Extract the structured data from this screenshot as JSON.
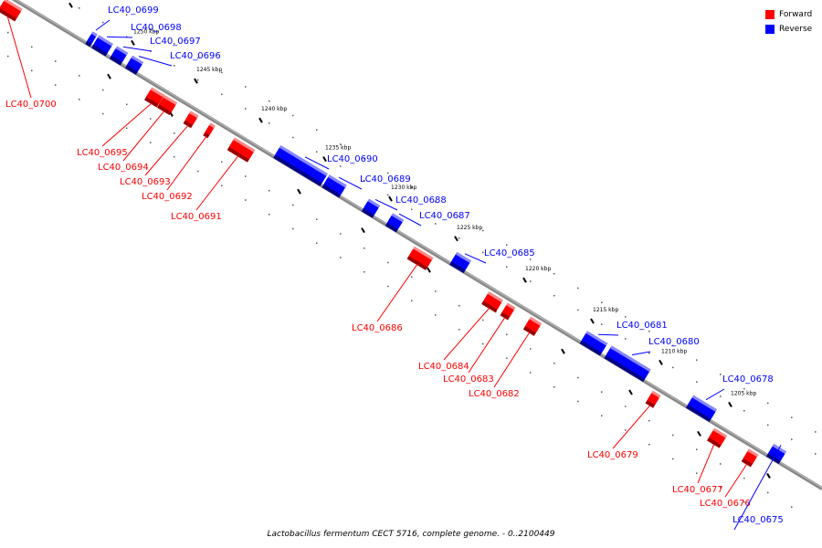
{
  "legend": {
    "forward_label": "Forward",
    "reverse_label": "Reverse",
    "forward_color": "#ff0000",
    "reverse_color": "#0000ff"
  },
  "caption": "Lactobacillus fermentum CECT 5716, complete genome. - 0..2100449",
  "ticks": [
    {
      "kbp": 1255,
      "label": "1255 kbp"
    },
    {
      "kbp": 1250,
      "label": "1250 kbp"
    },
    {
      "kbp": 1245,
      "label": "1245 kbp"
    },
    {
      "kbp": 1240,
      "label": "1240 kbp"
    },
    {
      "kbp": 1235,
      "label": "1235 kbp"
    },
    {
      "kbp": 1230,
      "label": "1230 kbp"
    },
    {
      "kbp": 1225,
      "label": "1225 kbp"
    },
    {
      "kbp": 1220,
      "label": "1220 kbp"
    },
    {
      "kbp": 1215,
      "label": "1215 kbp"
    },
    {
      "kbp": 1210,
      "label": "1210 kbp"
    },
    {
      "kbp": 1205,
      "label": "1205 kbp"
    }
  ],
  "genes": [
    {
      "name": "LC40_0700",
      "strand": "forward"
    },
    {
      "name": "LC40_0699",
      "strand": "reverse"
    },
    {
      "name": "LC40_0698",
      "strand": "reverse"
    },
    {
      "name": "LC40_0697",
      "strand": "reverse"
    },
    {
      "name": "LC40_0696",
      "strand": "reverse"
    },
    {
      "name": "LC40_0695",
      "strand": "forward"
    },
    {
      "name": "LC40_0694",
      "strand": "forward"
    },
    {
      "name": "LC40_0693",
      "strand": "forward"
    },
    {
      "name": "LC40_0692",
      "strand": "forward"
    },
    {
      "name": "LC40_0691",
      "strand": "forward"
    },
    {
      "name": "LC40_0690",
      "strand": "reverse"
    },
    {
      "name": "LC40_0689",
      "strand": "reverse"
    },
    {
      "name": "LC40_0688",
      "strand": "reverse"
    },
    {
      "name": "LC40_0687",
      "strand": "reverse"
    },
    {
      "name": "LC40_0686",
      "strand": "forward"
    },
    {
      "name": "LC40_0685",
      "strand": "reverse"
    },
    {
      "name": "LC40_0684",
      "strand": "forward"
    },
    {
      "name": "LC40_0683",
      "strand": "forward"
    },
    {
      "name": "LC40_0682",
      "strand": "forward"
    },
    {
      "name": "LC40_0681",
      "strand": "reverse"
    },
    {
      "name": "LC40_0680",
      "strand": "reverse"
    },
    {
      "name": "LC40_0679",
      "strand": "forward"
    },
    {
      "name": "LC40_0678",
      "strand": "reverse"
    },
    {
      "name": "LC40_0677",
      "strand": "forward"
    },
    {
      "name": "LC40_0676",
      "strand": "forward"
    },
    {
      "name": "LC40_0675",
      "strand": "reverse"
    }
  ]
}
